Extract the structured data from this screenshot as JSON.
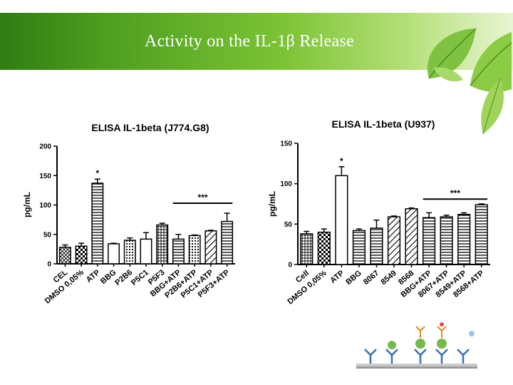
{
  "slide": {
    "title": "Activity on the  IL-1β Release"
  },
  "chart_data": [
    {
      "type": "bar",
      "title": "ELISA IL-1beta (J774.G8)",
      "ylabel": "pg/mL",
      "xlabel": "",
      "ylim": [
        0,
        200
      ],
      "yticks": [
        0,
        50,
        100,
        150,
        200
      ],
      "grid": false,
      "categories": [
        "CEL",
        "DMSO 0,05%",
        "ATP",
        "BBG",
        "P2B6",
        "P5C1",
        "P5F3",
        "BBG+ATP",
        "P2B6+ATP",
        "P5C1+ATP",
        "P5F3+ATP"
      ],
      "values": [
        28,
        30,
        137,
        34,
        40,
        42,
        66,
        42,
        48,
        56,
        72
      ],
      "errors": [
        4,
        5,
        7,
        1,
        4,
        11,
        3,
        8,
        1,
        1,
        14
      ],
      "patterns": [
        "cross",
        "check",
        "hlines",
        "none",
        "dots",
        "none",
        "grid",
        "hlines",
        "dots",
        "diag",
        "hlines"
      ],
      "annotations": [
        {
          "text": "*",
          "target_index": 2
        },
        {
          "text": "***",
          "span_from": 7,
          "span_to": 10,
          "bracket_y": 103
        }
      ]
    },
    {
      "type": "bar",
      "title": "ELISA IL-1beta (U937)",
      "ylabel": "pg/mL",
      "xlabel": "",
      "ylim": [
        0,
        150
      ],
      "yticks": [
        0,
        50,
        100,
        150
      ],
      "grid": false,
      "categories": [
        "Cell",
        "DMSO 0,05%",
        "ATP",
        "BBG",
        "8067",
        "8549",
        "8568",
        "BBG+ATP",
        "8067+ATP",
        "8549+ATP",
        "8568+ATP"
      ],
      "values": [
        38,
        40,
        110,
        42,
        45,
        59,
        69,
        58,
        59,
        62,
        74
      ],
      "errors": [
        3,
        4,
        11,
        2,
        10,
        1,
        1,
        6,
        2,
        2,
        1
      ],
      "patterns": [
        "grid",
        "check",
        "none",
        "hlines",
        "hlines",
        "diag",
        "diag",
        "hlines",
        "hlines",
        "hlines",
        "hlines"
      ],
      "annotations": [
        {
          "text": "*",
          "target_index": 2
        },
        {
          "text": "***",
          "span_from": 7,
          "span_to": 10,
          "bracket_y": 81
        }
      ]
    }
  ]
}
